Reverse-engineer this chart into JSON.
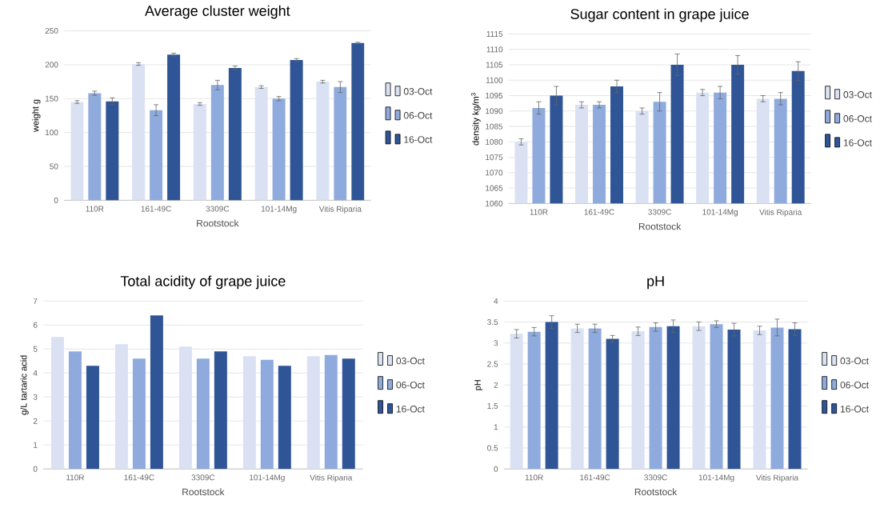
{
  "chart_data": [
    {
      "type": "bar",
      "title": "Average cluster weight",
      "xlabel": "Rootstock",
      "ylabel": "weight g",
      "categories": [
        "110R",
        "161-49C",
        "3309C",
        "101-14Mg",
        "Vitis Riparia"
      ],
      "ylim": [
        0,
        250
      ],
      "yticks": [
        0,
        50,
        100,
        150,
        200,
        250
      ],
      "grid": "y",
      "legend": "right",
      "series": [
        {
          "name": "03-Oct",
          "color": "#d9e1f2",
          "values": [
            145,
            201,
            142,
            167,
            175
          ],
          "errors": [
            2,
            2,
            2,
            2,
            2
          ]
        },
        {
          "name": "06-Oct",
          "color": "#8faadc",
          "values": [
            158,
            133,
            170,
            150,
            167
          ],
          "errors": [
            3,
            8,
            7,
            3,
            8
          ]
        },
        {
          "name": "16-Oct",
          "color": "#2f5597",
          "values": [
            146,
            215,
            195,
            207,
            232
          ],
          "errors": [
            5,
            2,
            3,
            2,
            1
          ]
        }
      ]
    },
    {
      "type": "bar",
      "title": "Sugar content in grape juice",
      "xlabel": "Rootstock",
      "ylabel": "density kg/m$^{3}$",
      "categories": [
        "110R",
        "161-49C",
        "3309C",
        "101-14Mg",
        "Vitis Riparia"
      ],
      "ylim": [
        1060,
        1115
      ],
      "yticks": [
        1060,
        1065,
        1070,
        1075,
        1080,
        1085,
        1090,
        1095,
        1100,
        1105,
        1110,
        1115
      ],
      "grid": "y",
      "legend": "right",
      "series": [
        {
          "name": "03-Oct",
          "color": "#d9e1f2",
          "values": [
            1080,
            1092,
            1090,
            1096,
            1094
          ],
          "errors": [
            1,
            1,
            1,
            1,
            1
          ]
        },
        {
          "name": "06-Oct",
          "color": "#8faadc",
          "values": [
            1091,
            1092,
            1093,
            1096,
            1094
          ],
          "errors": [
            2,
            1,
            3,
            2,
            2
          ]
        },
        {
          "name": "16-Oct",
          "color": "#2f5597",
          "values": [
            1095,
            1098,
            1105,
            1105,
            1103
          ],
          "errors": [
            3,
            2,
            3.5,
            3,
            3
          ]
        }
      ]
    },
    {
      "type": "bar",
      "title": "Total acidity of grape juice",
      "xlabel": "Rootstock",
      "ylabel": "g/L tartaric acid",
      "categories": [
        "110R",
        "161-49C",
        "3309C",
        "101-14Mg",
        "Vitis Riparia"
      ],
      "ylim": [
        0,
        7
      ],
      "yticks": [
        0,
        1,
        2,
        3,
        4,
        5,
        6,
        7
      ],
      "grid": "y",
      "legend": "right",
      "series": [
        {
          "name": "03-Oct",
          "color": "#d9e1f2",
          "values": [
            5.5,
            5.2,
            5.1,
            4.7,
            4.7
          ]
        },
        {
          "name": "06-Oct",
          "color": "#8faadc",
          "values": [
            4.9,
            4.6,
            4.6,
            4.55,
            4.75
          ]
        },
        {
          "name": "16-Oct",
          "color": "#2f5597",
          "values": [
            4.3,
            6.4,
            4.9,
            4.3,
            4.6
          ]
        }
      ]
    },
    {
      "type": "bar",
      "title": "pH",
      "xlabel": "Rootstock",
      "ylabel": "pH",
      "categories": [
        "110R",
        "161-49C",
        "3309C",
        "101-14Mg",
        "Vitis Riparia"
      ],
      "ylim": [
        0,
        4
      ],
      "yticks": [
        0,
        0.5,
        1,
        1.5,
        2,
        2.5,
        3,
        3.5,
        4
      ],
      "grid": "y",
      "legend": "right",
      "series": [
        {
          "name": "03-Oct",
          "color": "#d9e1f2",
          "values": [
            3.22,
            3.35,
            3.28,
            3.4,
            3.3
          ],
          "errors": [
            0.1,
            0.1,
            0.1,
            0.1,
            0.1
          ]
        },
        {
          "name": "06-Oct",
          "color": "#8faadc",
          "values": [
            3.27,
            3.35,
            3.38,
            3.45,
            3.37
          ],
          "errors": [
            0.1,
            0.1,
            0.1,
            0.08,
            0.2
          ]
        },
        {
          "name": "16-Oct",
          "color": "#2f5597",
          "values": [
            3.5,
            3.1,
            3.4,
            3.32,
            3.33
          ],
          "errors": [
            0.15,
            0.08,
            0.15,
            0.15,
            0.15
          ]
        }
      ]
    }
  ]
}
